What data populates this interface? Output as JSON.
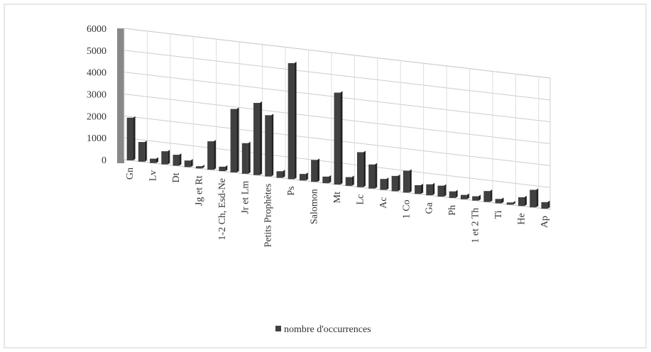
{
  "chart_data": {
    "type": "bar",
    "categories": [
      "Gn",
      null,
      "Lv",
      null,
      "Dt",
      null,
      "Jg et Rt",
      null,
      "1-2 Ch, Esd-Ne",
      null,
      "Jr et Lm",
      null,
      "Petits Prophètes",
      null,
      "Ps",
      null,
      "Salomon",
      null,
      "Mt",
      null,
      "Lc",
      null,
      "Ac",
      null,
      "1 Co",
      null,
      "Ga",
      null,
      "Ph",
      null,
      "1 et 2 Th",
      null,
      "Ti",
      null,
      "He",
      null,
      "Ap"
    ],
    "series": [
      {
        "name": "nombre d'occurrences",
        "color": "#404040",
        "values": [
          1950,
          900,
          200,
          600,
          500,
          300,
          100,
          1300,
          200,
          2900,
          1400,
          3300,
          2800,
          300,
          5300,
          300,
          1000,
          300,
          4200,
          400,
          1600,
          1100,
          500,
          700,
          1000,
          400,
          500,
          500,
          300,
          200,
          200,
          500,
          200,
          100,
          400,
          800,
          300
        ]
      }
    ],
    "ylim": [
      0,
      6000
    ],
    "yticks": [
      0,
      1000,
      2000,
      3000,
      4000,
      5000,
      6000
    ],
    "grid": true,
    "legend": "bottom"
  }
}
